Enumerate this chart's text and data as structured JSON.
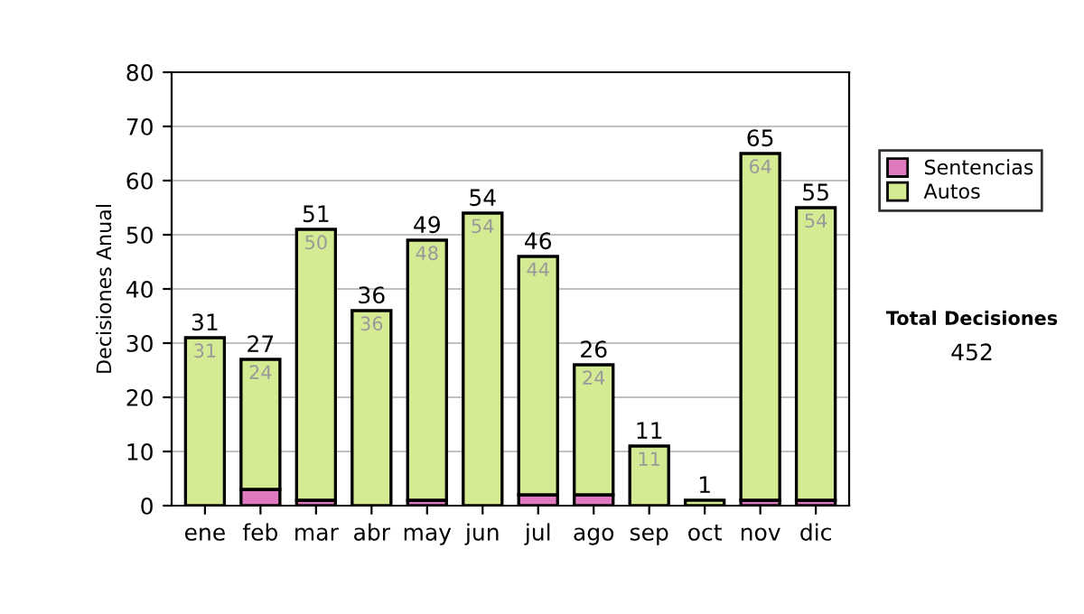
{
  "chart_data": {
    "type": "bar",
    "stacked": true,
    "ylabel": "Decisiones Anual",
    "categories": [
      "ene",
      "feb",
      "mar",
      "abr",
      "may",
      "jun",
      "jul",
      "ago",
      "sep",
      "oct",
      "nov",
      "dic"
    ],
    "series": [
      {
        "name": "Sentencias",
        "color": "#e07ac0",
        "values": [
          0,
          3,
          1,
          0,
          1,
          0,
          2,
          2,
          0,
          0,
          1,
          1
        ]
      },
      {
        "name": "Autos",
        "color": "#d4eb94",
        "values": [
          31,
          24,
          50,
          36,
          48,
          54,
          44,
          24,
          11,
          1,
          64,
          54
        ],
        "value_labels": [
          "31",
          "24",
          "50",
          "36",
          "48",
          "54",
          "44",
          "24",
          "11",
          null,
          "64",
          "54"
        ]
      }
    ],
    "totals": [
      "31",
      "27",
      "51",
      "36",
      "49",
      "54",
      "46",
      "26",
      "11",
      "1",
      "65",
      "55"
    ],
    "ylim": [
      0,
      80
    ],
    "yticks": [
      0,
      10,
      20,
      30,
      40,
      50,
      60,
      70,
      80
    ],
    "grid": "y",
    "legend": "right",
    "annotations": [
      "Total Decisiones",
      "452"
    ]
  }
}
